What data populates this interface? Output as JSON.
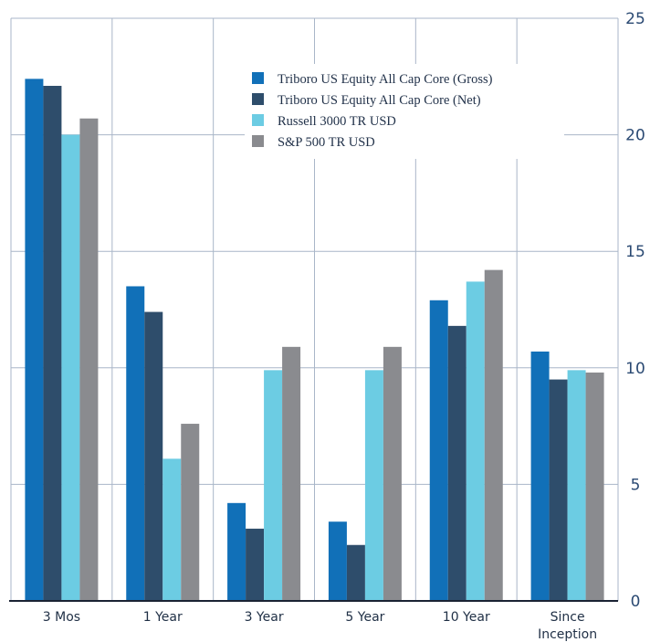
{
  "chart_data": {
    "type": "bar",
    "categories": [
      "3 Mos",
      "1 Year",
      "3 Year",
      "5 Year",
      "10 Year",
      "Since\nInception"
    ],
    "series": [
      {
        "name": "Triboro US Equity All Cap Core (Gross)",
        "color": "#1170b8",
        "values": [
          22.4,
          13.5,
          4.2,
          3.4,
          12.9,
          10.7
        ]
      },
      {
        "name": "Triboro US Equity All Cap Core (Net)",
        "color": "#2e4d6b",
        "values": [
          22.1,
          12.4,
          3.1,
          2.4,
          11.8,
          9.5
        ]
      },
      {
        "name": "Russell 3000 TR USD",
        "color": "#6ccce3",
        "values": [
          20.0,
          6.1,
          9.9,
          9.9,
          13.7,
          9.9
        ]
      },
      {
        "name": "S&P 500 TR USD",
        "color": "#8a8b8f",
        "values": [
          20.7,
          7.6,
          10.9,
          10.9,
          14.2,
          9.8
        ]
      }
    ],
    "ylim": [
      0,
      25
    ],
    "yticks": [
      0,
      5,
      10,
      15,
      20,
      25
    ],
    "grid": true,
    "legend_position": "top-right"
  }
}
